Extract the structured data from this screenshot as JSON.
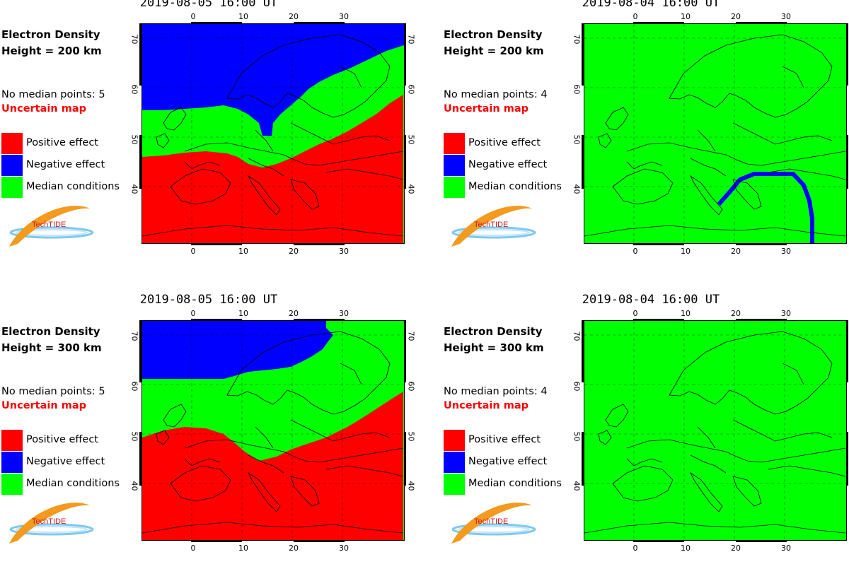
{
  "colors": {
    "positive": "#ff0000",
    "negative": "#0000ff",
    "median": "#00ff00",
    "coast": "#000000"
  },
  "legend": [
    {
      "label": "Positive effect",
      "color": "#ff0000"
    },
    {
      "label": "Negative effect",
      "color": "#0000ff"
    },
    {
      "label": "Median conditions",
      "color": "#00ff00"
    }
  ],
  "logo_text": "TechTIDE",
  "axes": {
    "x_ticks": [
      "0",
      "10",
      "20",
      "30"
    ],
    "y_ticks": [
      "70",
      "60",
      "50",
      "40"
    ]
  },
  "panels": [
    {
      "id": "p1",
      "title": "2019-08-05 16:00 UT",
      "line1": "Electron Density",
      "line2": "Height = 200 km",
      "median_points": "No median points: 5",
      "status": "Uncertain map",
      "pattern": "neg-north-pos-south-200"
    },
    {
      "id": "p2",
      "title": "2019-08-04 16:00 UT",
      "line1": "Electron Density",
      "line2": "Height = 200 km",
      "median_points": "No median points: 4",
      "status": "Uncertain map",
      "pattern": "median-with-arc"
    },
    {
      "id": "p3",
      "title": "2019-08-05 16:00 UT",
      "line1": "Electron Density",
      "line2": "Height = 300 km",
      "median_points": "No median points: 5",
      "status": "Uncertain map",
      "pattern": "neg-north-pos-south-300"
    },
    {
      "id": "p4",
      "title": "2019-08-04 16:00 UT",
      "line1": "Electron Density",
      "line2": "Height = 300 km",
      "median_points": "No median points: 4",
      "status": "Uncertain map",
      "pattern": "median-only"
    }
  ]
}
